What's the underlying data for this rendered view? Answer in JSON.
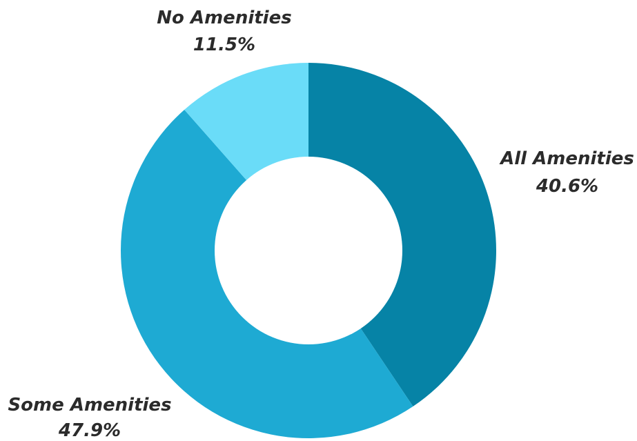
{
  "chart_data": {
    "type": "donut",
    "title": "",
    "slices": [
      {
        "label": "All Amenities",
        "value": 40.6,
        "value_label": "40.6%",
        "color": "#0683A6"
      },
      {
        "label": "Some Amenities",
        "value": 47.9,
        "value_label": "47.9%",
        "color": "#1EAAD3"
      },
      {
        "label": "No Amenities",
        "value": 11.5,
        "value_label": "11.5%",
        "color": "#6ADCF8"
      }
    ],
    "start_angle": "top (12 o'clock)",
    "direction": "clockwise",
    "legend": "none"
  }
}
